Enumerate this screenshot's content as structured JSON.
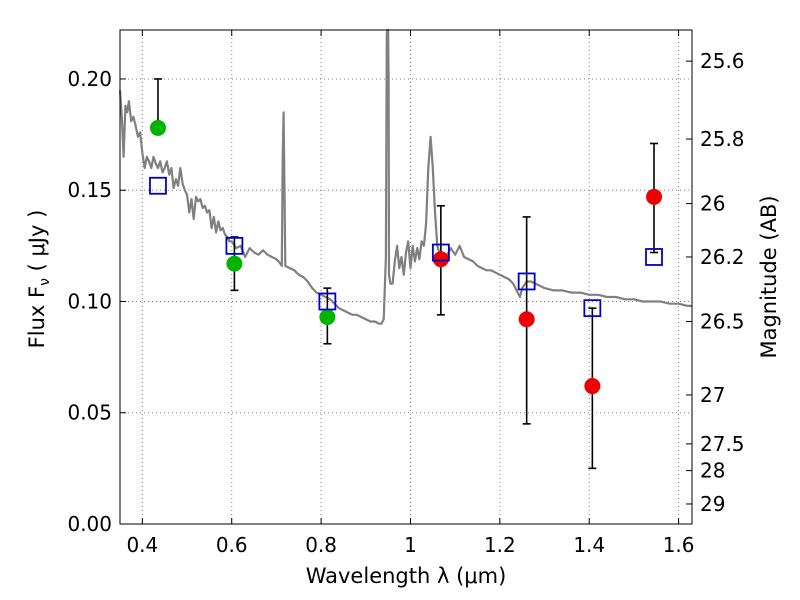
{
  "chart_data": {
    "type": "scatter",
    "xlabel": "Wavelength  λ (μm)",
    "ylabel": "Flux  F",
    "ylabel_sub": "ν",
    "ylabel_unit": "  ( μJy )",
    "y2label": "Magnitude (AB)",
    "xlim": [
      0.35,
      1.63
    ],
    "ylim": [
      0.0,
      0.222
    ],
    "grid": true,
    "x_ticks": [
      0.4,
      0.6,
      0.8,
      1.0,
      1.2,
      1.4,
      1.6
    ],
    "x_tick_labels": [
      "0.4",
      "0.6",
      "0.8",
      "1",
      "1.2",
      "1.4",
      "1.6"
    ],
    "y_ticks": [
      0.0,
      0.05,
      0.1,
      0.15,
      0.2
    ],
    "y_tick_labels": [
      "0.00",
      "0.05",
      "0.10",
      "0.15",
      "0.20"
    ],
    "y2_ticks": [
      {
        "label": "25.6",
        "flux": 0.208
      },
      {
        "label": "25.8",
        "flux": 0.173
      },
      {
        "label": "26",
        "flux": 0.144
      },
      {
        "label": "26.2",
        "flux": 0.12
      },
      {
        "label": "26.5",
        "flux": 0.091
      },
      {
        "label": "27",
        "flux": 0.058
      },
      {
        "label": "27.5",
        "flux": 0.036
      },
      {
        "label": "28",
        "flux": 0.024
      },
      {
        "label": "29",
        "flux": 0.009
      }
    ],
    "colors": {
      "model_sed": "#808080",
      "green_points": "#00b400",
      "red_points": "#ee0000",
      "model_photometry": "#0000cc",
      "errorbar": "#000000",
      "grid": "#808080"
    },
    "series": [
      {
        "style": "line",
        "points": [
          [
            0.35,
            0.195
          ],
          [
            0.354,
            0.183
          ],
          [
            0.358,
            0.165
          ],
          [
            0.362,
            0.188
          ],
          [
            0.366,
            0.185
          ],
          [
            0.37,
            0.19
          ],
          [
            0.375,
            0.181
          ],
          [
            0.38,
            0.183
          ],
          [
            0.385,
            0.179
          ],
          [
            0.39,
            0.174
          ],
          [
            0.395,
            0.176
          ],
          [
            0.4,
            0.167
          ],
          [
            0.405,
            0.16
          ],
          [
            0.41,
            0.165
          ],
          [
            0.415,
            0.163
          ],
          [
            0.42,
            0.16
          ],
          [
            0.425,
            0.165
          ],
          [
            0.43,
            0.162
          ],
          [
            0.435,
            0.16
          ],
          [
            0.44,
            0.163
          ],
          [
            0.445,
            0.158
          ],
          [
            0.45,
            0.16
          ],
          [
            0.455,
            0.163
          ],
          [
            0.46,
            0.157
          ],
          [
            0.465,
            0.16
          ],
          [
            0.47,
            0.151
          ],
          [
            0.475,
            0.155
          ],
          [
            0.48,
            0.152
          ],
          [
            0.485,
            0.16
          ],
          [
            0.49,
            0.153
          ],
          [
            0.495,
            0.15
          ],
          [
            0.5,
            0.148
          ],
          [
            0.505,
            0.14
          ],
          [
            0.51,
            0.146
          ],
          [
            0.515,
            0.137
          ],
          [
            0.52,
            0.147
          ],
          [
            0.525,
            0.145
          ],
          [
            0.53,
            0.146
          ],
          [
            0.535,
            0.142
          ],
          [
            0.54,
            0.143
          ],
          [
            0.545,
            0.14
          ],
          [
            0.55,
            0.141
          ],
          [
            0.555,
            0.133
          ],
          [
            0.56,
            0.138
          ],
          [
            0.565,
            0.131
          ],
          [
            0.57,
            0.136
          ],
          [
            0.575,
            0.132
          ],
          [
            0.58,
            0.133
          ],
          [
            0.585,
            0.13
          ],
          [
            0.59,
            0.129
          ],
          [
            0.595,
            0.127
          ],
          [
            0.6,
            0.127
          ],
          [
            0.61,
            0.124
          ],
          [
            0.62,
            0.125
          ],
          [
            0.63,
            0.12
          ],
          [
            0.64,
            0.124
          ],
          [
            0.65,
            0.122
          ],
          [
            0.66,
            0.121
          ],
          [
            0.67,
            0.123
          ],
          [
            0.68,
            0.121
          ],
          [
            0.69,
            0.12
          ],
          [
            0.7,
            0.119
          ],
          [
            0.705,
            0.118
          ],
          [
            0.712,
            0.116
          ],
          [
            0.714,
            0.165
          ],
          [
            0.716,
            0.185
          ],
          [
            0.718,
            0.15
          ],
          [
            0.72,
            0.116
          ],
          [
            0.73,
            0.115
          ],
          [
            0.74,
            0.114
          ],
          [
            0.75,
            0.112
          ],
          [
            0.76,
            0.111
          ],
          [
            0.77,
            0.109
          ],
          [
            0.78,
            0.106
          ],
          [
            0.79,
            0.104
          ],
          [
            0.8,
            0.103
          ],
          [
            0.81,
            0.102
          ],
          [
            0.82,
            0.101
          ],
          [
            0.83,
            0.099
          ],
          [
            0.84,
            0.097
          ],
          [
            0.85,
            0.096
          ],
          [
            0.86,
            0.095
          ],
          [
            0.87,
            0.094
          ],
          [
            0.88,
            0.094
          ],
          [
            0.89,
            0.093
          ],
          [
            0.9,
            0.092
          ],
          [
            0.91,
            0.091
          ],
          [
            0.92,
            0.091
          ],
          [
            0.93,
            0.09
          ],
          [
            0.935,
            0.09
          ],
          [
            0.94,
            0.092
          ],
          [
            0.945,
            0.12
          ],
          [
            0.947,
            0.22
          ],
          [
            0.948,
            0.222
          ],
          [
            0.95,
            0.222
          ],
          [
            0.951,
            0.2
          ],
          [
            0.952,
            0.112
          ],
          [
            0.955,
            0.108
          ],
          [
            0.96,
            0.108
          ],
          [
            0.965,
            0.118
          ],
          [
            0.97,
            0.125
          ],
          [
            0.975,
            0.115
          ],
          [
            0.98,
            0.12
          ],
          [
            0.985,
            0.112
          ],
          [
            0.99,
            0.122
          ],
          [
            0.995,
            0.127
          ],
          [
            1.0,
            0.115
          ],
          [
            1.005,
            0.125
          ],
          [
            1.01,
            0.118
          ],
          [
            1.015,
            0.124
          ],
          [
            1.02,
            0.119
          ],
          [
            1.025,
            0.127
          ],
          [
            1.03,
            0.125
          ],
          [
            1.035,
            0.135
          ],
          [
            1.04,
            0.16
          ],
          [
            1.045,
            0.174
          ],
          [
            1.05,
            0.16
          ],
          [
            1.055,
            0.14
          ],
          [
            1.06,
            0.125
          ],
          [
            1.07,
            0.118
          ],
          [
            1.08,
            0.12
          ],
          [
            1.09,
            0.124
          ],
          [
            1.1,
            0.121
          ],
          [
            1.11,
            0.125
          ],
          [
            1.12,
            0.12
          ],
          [
            1.13,
            0.119
          ],
          [
            1.14,
            0.118
          ],
          [
            1.15,
            0.116
          ],
          [
            1.16,
            0.115
          ],
          [
            1.17,
            0.114
          ],
          [
            1.18,
            0.114
          ],
          [
            1.19,
            0.113
          ],
          [
            1.2,
            0.112
          ],
          [
            1.21,
            0.111
          ],
          [
            1.22,
            0.11
          ],
          [
            1.23,
            0.108
          ],
          [
            1.24,
            0.104
          ],
          [
            1.245,
            0.102
          ],
          [
            1.25,
            0.106
          ],
          [
            1.26,
            0.109
          ],
          [
            1.27,
            0.109
          ],
          [
            1.28,
            0.108
          ],
          [
            1.29,
            0.107
          ],
          [
            1.3,
            0.106
          ],
          [
            1.32,
            0.105
          ],
          [
            1.34,
            0.105
          ],
          [
            1.36,
            0.104
          ],
          [
            1.38,
            0.104
          ],
          [
            1.4,
            0.103
          ],
          [
            1.42,
            0.103
          ],
          [
            1.44,
            0.102
          ],
          [
            1.46,
            0.102
          ],
          [
            1.48,
            0.101
          ],
          [
            1.5,
            0.101
          ],
          [
            1.52,
            0.1
          ],
          [
            1.54,
            0.1
          ],
          [
            1.56,
            0.1
          ],
          [
            1.58,
            0.099
          ],
          [
            1.6,
            0.099
          ],
          [
            1.62,
            0.098
          ],
          [
            1.63,
            0.098
          ]
        ]
      },
      {
        "style": "filled-circle",
        "color": "green",
        "points": [
          {
            "x": 0.435,
            "y": 0.178,
            "err_lo": 0.178,
            "err_hi": 0.2
          },
          {
            "x": 0.606,
            "y": 0.117,
            "err_lo": 0.105,
            "err_hi": 0.129
          },
          {
            "x": 0.814,
            "y": 0.093,
            "err_lo": 0.081,
            "err_hi": 0.106
          }
        ]
      },
      {
        "style": "filled-circle",
        "color": "red",
        "points": [
          {
            "x": 1.068,
            "y": 0.119,
            "err_lo": 0.094,
            "err_hi": 0.143
          },
          {
            "x": 1.26,
            "y": 0.092,
            "err_lo": 0.045,
            "err_hi": 0.138
          },
          {
            "x": 1.407,
            "y": 0.062,
            "err_lo": 0.025,
            "err_hi": 0.097
          },
          {
            "x": 1.545,
            "y": 0.147,
            "err_lo": 0.122,
            "err_hi": 0.171
          }
        ]
      },
      {
        "style": "open-square",
        "color": "blue",
        "points": [
          {
            "x": 0.435,
            "y": 0.152
          },
          {
            "x": 0.606,
            "y": 0.125
          },
          {
            "x": 0.814,
            "y": 0.1
          },
          {
            "x": 1.068,
            "y": 0.122
          },
          {
            "x": 1.26,
            "y": 0.109
          },
          {
            "x": 1.407,
            "y": 0.097
          },
          {
            "x": 1.545,
            "y": 0.12
          }
        ]
      }
    ]
  }
}
